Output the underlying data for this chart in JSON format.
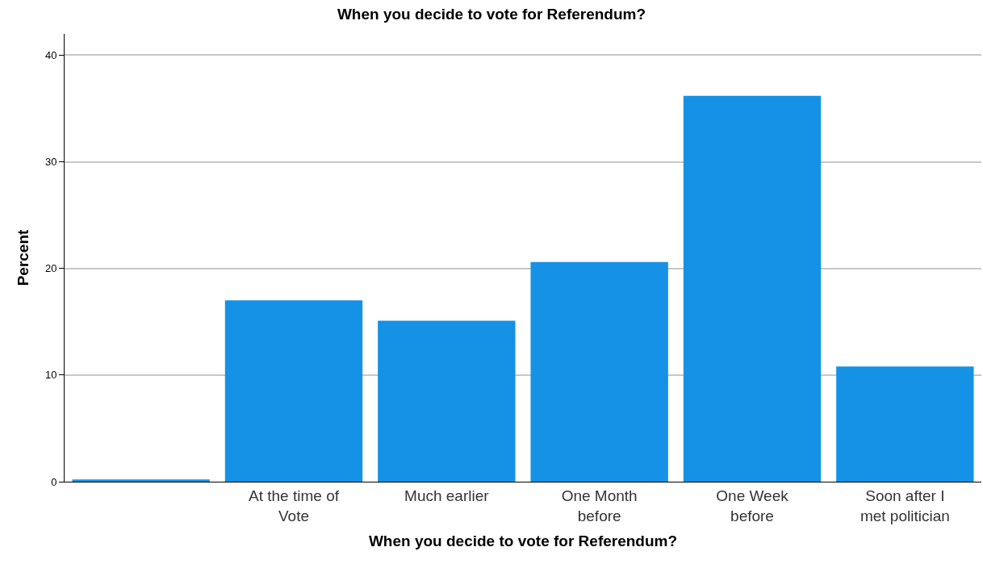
{
  "chart_data": {
    "type": "bar",
    "title": "When you decide to vote for Referendum?",
    "xlabel": "When you decide to vote for Referendum?",
    "ylabel": "Percent",
    "categories": [
      null,
      "At the time of\nVote",
      "Much earlier",
      "One Month\nbefore",
      "One Week\nbefore",
      "Soon after I\nmet politician"
    ],
    "values": [
      0.2,
      17.0,
      15.1,
      20.6,
      36.2,
      10.8
    ],
    "color": "#1592e6",
    "ylim": [
      0,
      42
    ],
    "yticks": [
      0,
      10,
      20,
      30,
      40
    ],
    "grid": "y"
  }
}
